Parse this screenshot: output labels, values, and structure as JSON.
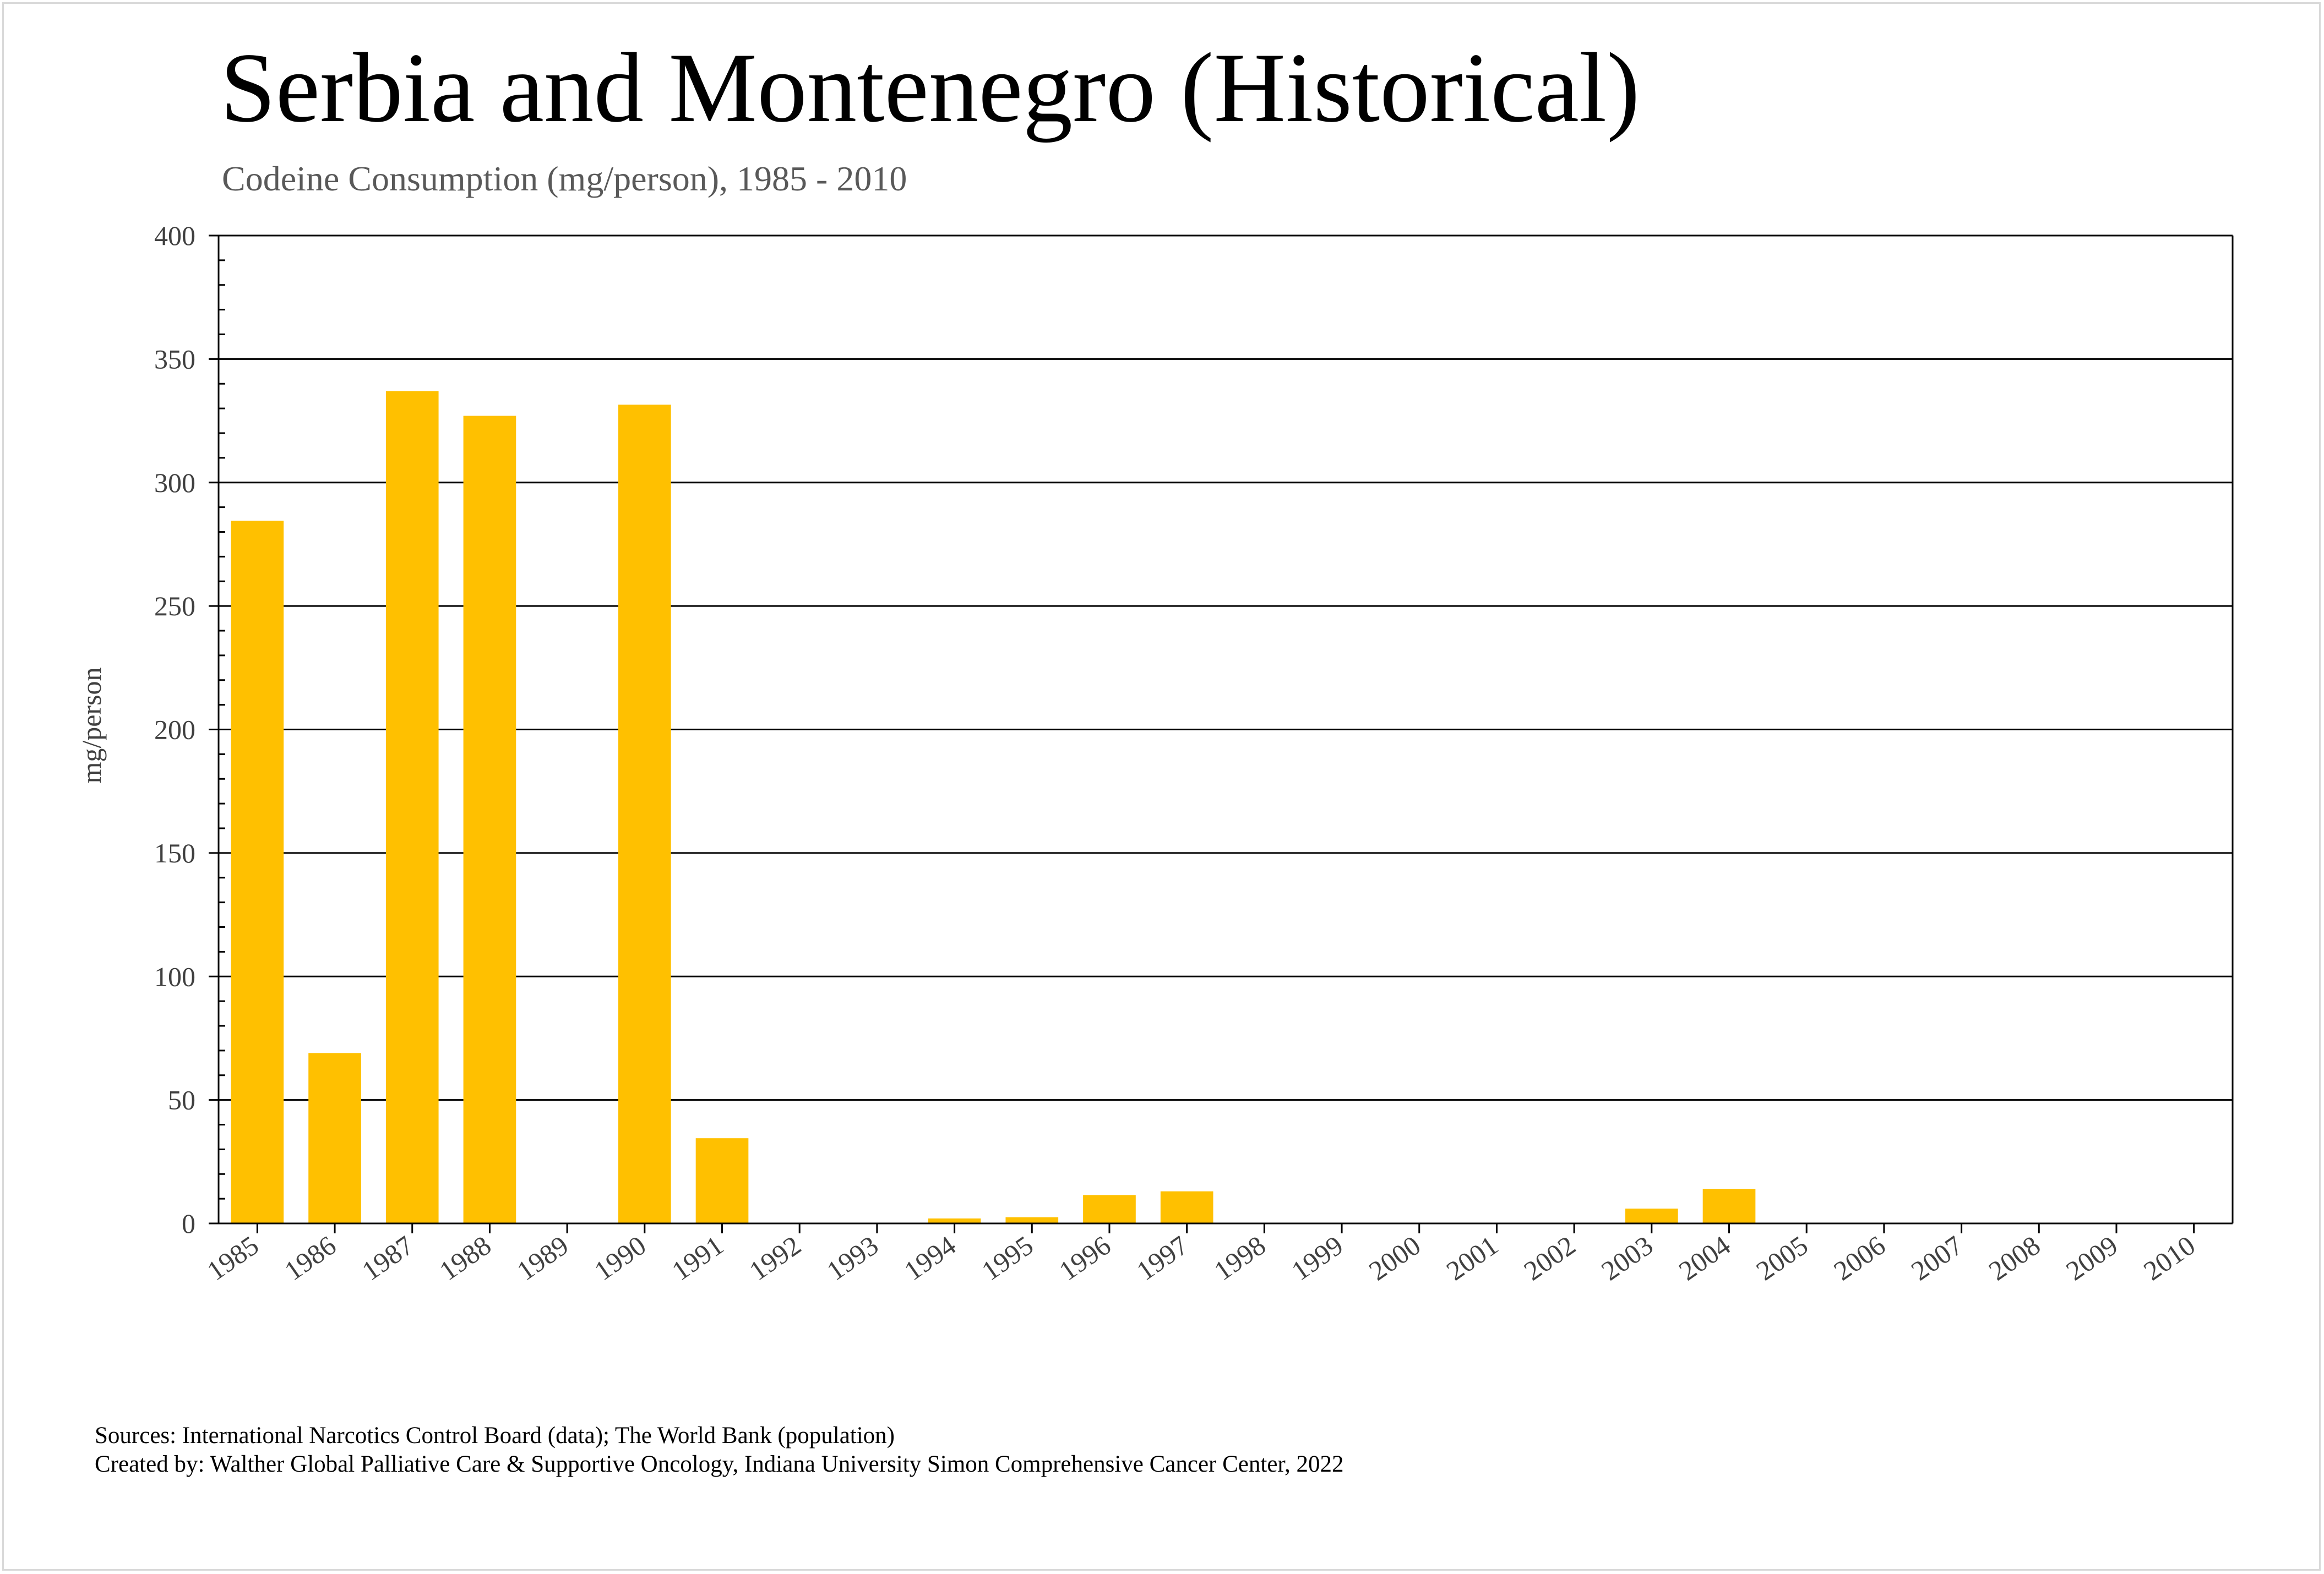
{
  "title": "Serbia and Montenegro (Historical)",
  "subtitle": "Codeine Consumption (mg/person), 1985 - 2010",
  "sources_line": "Sources: International Narcotics Control Board (data); The World Bank (population)",
  "created_line": "Created by: Walther Global Palliative Care & Supportive Oncology, Indiana University Simon Comprehensive Cancer Center, 2022",
  "colors": {
    "bar": "#FFC000",
    "grid": "#000000",
    "text": "#404040"
  },
  "chart_data": {
    "type": "bar",
    "title": "Serbia and Montenegro (Historical)",
    "subtitle": "Codeine Consumption (mg/person), 1985 - 2010",
    "xlabel": "",
    "ylabel": "mg/person",
    "ylim": [
      0,
      400
    ],
    "yticks": [
      0,
      50,
      100,
      150,
      200,
      250,
      300,
      350,
      400
    ],
    "grid": true,
    "legend": "none",
    "categories": [
      "1985",
      "1986",
      "1987",
      "1988",
      "1989",
      "1990",
      "1991",
      "1992",
      "1993",
      "1994",
      "1995",
      "1996",
      "1997",
      "1998",
      "1999",
      "2000",
      "2001",
      "2002",
      "2003",
      "2004",
      "2005",
      "2006",
      "2007",
      "2008",
      "2009",
      "2010"
    ],
    "values": [
      284.5,
      69,
      337,
      327,
      0,
      331.5,
      34.5,
      0,
      0,
      2,
      2.5,
      11.5,
      13,
      0,
      0,
      0,
      0.3,
      0.3,
      6,
      14,
      0,
      0,
      0,
      0,
      0,
      0
    ]
  }
}
